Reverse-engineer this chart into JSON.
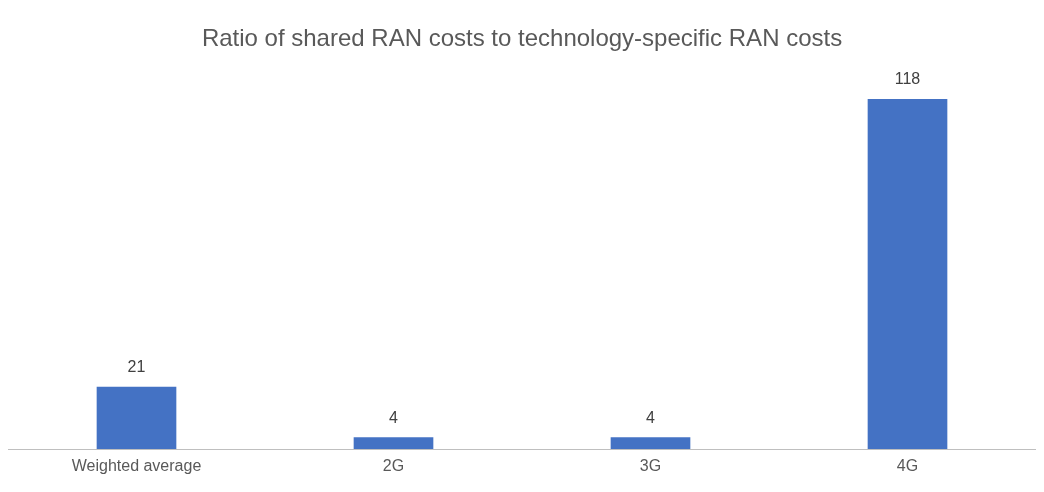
{
  "chart_data": {
    "type": "bar",
    "title": "Ratio of shared RAN costs to technology-specific RAN costs",
    "categories": [
      "Weighted average",
      "2G",
      "3G",
      "4G"
    ],
    "values": [
      21,
      4,
      4,
      118
    ],
    "color": "#4472c4",
    "data_labels": true
  }
}
